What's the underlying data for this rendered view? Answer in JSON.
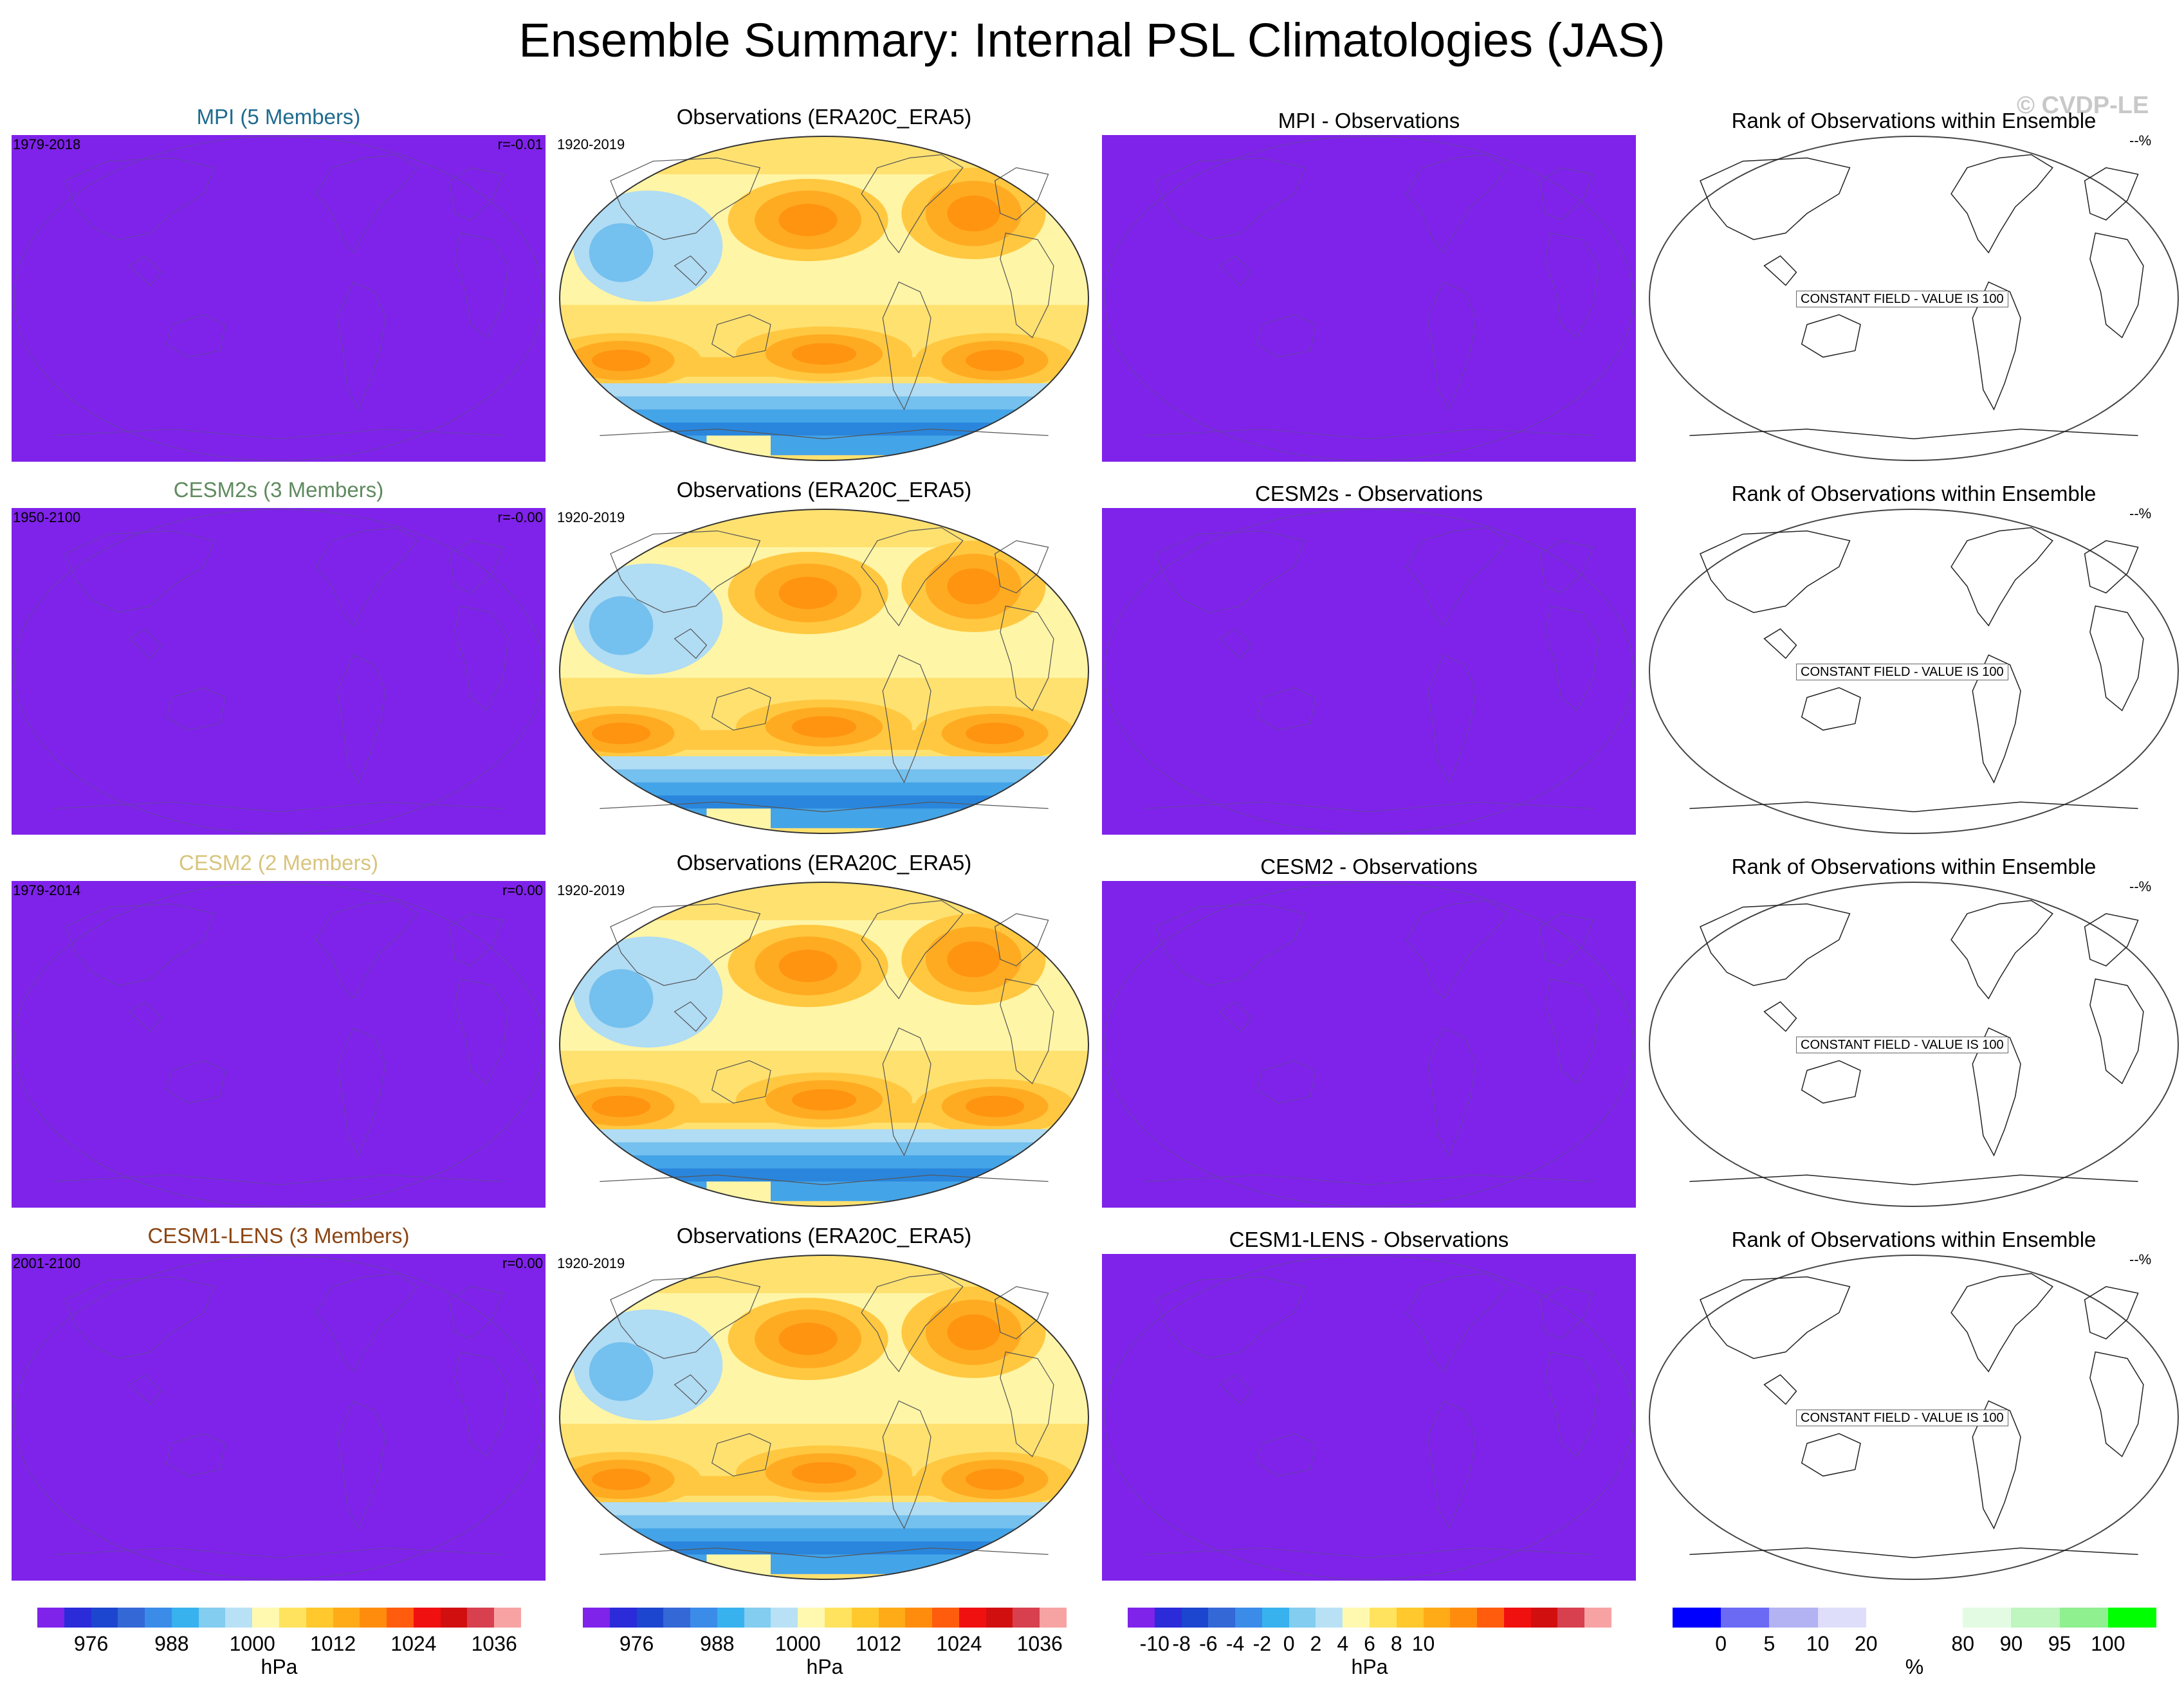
{
  "title": "Ensemble Summary: Internal PSL Climatologies (JAS)",
  "copyright": "© CVDP-LE",
  "rows": [
    {
      "ensemble": {
        "title": "MPI (5 Members)",
        "title_color": "#1f6b8e",
        "years": "1979-2018",
        "corr": "r=-0.01"
      },
      "obs": {
        "title": "Observations (ERA20C_ERA5)",
        "years": "1920-2019"
      },
      "diff": {
        "title": "MPI - Observations"
      },
      "rank": {
        "title": "Rank of Observations within Ensemble",
        "pct": "--%",
        "note": "CONSTANT FIELD - VALUE IS 100"
      }
    },
    {
      "ensemble": {
        "title": "CESM2s (3 Members)",
        "title_color": "#5f8a5f",
        "years": "1950-2100",
        "corr": "r=-0.00"
      },
      "obs": {
        "title": "Observations (ERA20C_ERA5)",
        "years": "1920-2019"
      },
      "diff": {
        "title": "CESM2s - Observations"
      },
      "rank": {
        "title": "Rank of Observations within Ensemble",
        "pct": "--%",
        "note": "CONSTANT FIELD - VALUE IS 100"
      }
    },
    {
      "ensemble": {
        "title": "CESM2 (2 Members)",
        "title_color": "#d8c47c",
        "years": "1979-2014",
        "corr": "r=0.00"
      },
      "obs": {
        "title": "Observations (ERA20C_ERA5)",
        "years": "1920-2019"
      },
      "diff": {
        "title": "CESM2 - Observations"
      },
      "rank": {
        "title": "Rank of Observations within Ensemble",
        "pct": "--%",
        "note": "CONSTANT FIELD - VALUE IS 100"
      }
    },
    {
      "ensemble": {
        "title": "CESM1-LENS (3 Members)",
        "title_color": "#8b4513",
        "years": "2001-2100",
        "corr": "r=0.00"
      },
      "obs": {
        "title": "Observations (ERA20C_ERA5)",
        "years": "1920-2019"
      },
      "diff": {
        "title": "CESM1-LENS - Observations"
      },
      "rank": {
        "title": "Rank of Observations within Ensemble",
        "pct": "--%",
        "note": "CONSTANT FIELD - VALUE IS 100"
      }
    }
  ],
  "fill_color": "#7f22ea",
  "obs_fill_colors": [
    "#fff5a6",
    "#ffe170",
    "#ffc840",
    "#ffab22",
    "#ff9410",
    "#f9a30c"
  ],
  "obs_cool_colors": [
    "#b0dcf4",
    "#74c0ee",
    "#44a4e8",
    "#2a86dc",
    "#4566d8"
  ],
  "colorbars": [
    {
      "unit": "hPa",
      "colors": [
        "#7f22ea",
        "#2b2bd9",
        "#1c46cf",
        "#3468d6",
        "#3a8ce8",
        "#37b2ef",
        "#82cdf0",
        "#b8e1f5",
        "#fff9b0",
        "#ffe35f",
        "#ffc82d",
        "#ffab18",
        "#ff8c0d",
        "#ff5c0d",
        "#f11010",
        "#d20f0f",
        "#d8404f",
        "#f7a3a3"
      ],
      "ticks": [
        {
          "label": "976",
          "pos": 2
        },
        {
          "label": "988",
          "pos": 5
        },
        {
          "label": "1000",
          "pos": 8
        },
        {
          "label": "1012",
          "pos": 11
        },
        {
          "label": "1024",
          "pos": 14
        },
        {
          "label": "1036",
          "pos": 17
        }
      ]
    },
    {
      "unit": "hPa",
      "colors": [
        "#7f22ea",
        "#2b2bd9",
        "#1c46cf",
        "#3468d6",
        "#3a8ce8",
        "#37b2ef",
        "#82cdf0",
        "#b8e1f5",
        "#fff9b0",
        "#ffe35f",
        "#ffc82d",
        "#ffab18",
        "#ff8c0d",
        "#ff5c0d",
        "#f11010",
        "#d20f0f",
        "#d8404f",
        "#f7a3a3"
      ],
      "ticks": [
        {
          "label": "976",
          "pos": 2
        },
        {
          "label": "988",
          "pos": 5
        },
        {
          "label": "1000",
          "pos": 8
        },
        {
          "label": "1012",
          "pos": 11
        },
        {
          "label": "1024",
          "pos": 14
        },
        {
          "label": "1036",
          "pos": 17
        }
      ]
    },
    {
      "unit": "hPa",
      "colors": [
        "#7f22ea",
        "#2b2bd9",
        "#1c46cf",
        "#3468d6",
        "#3a8ce8",
        "#37b2ef",
        "#82cdf0",
        "#b8e1f5",
        "#fff9b0",
        "#ffe35f",
        "#ffc82d",
        "#ffab18",
        "#ff8c0d",
        "#ff5c0d",
        "#f11010",
        "#d20f0f",
        "#d8404f",
        "#f7a3a3"
      ],
      "ticks": [
        {
          "label": "-10",
          "pos": 1
        },
        {
          "label": "-8",
          "pos": 2
        },
        {
          "label": "-6",
          "pos": 3
        },
        {
          "label": "-4",
          "pos": 4
        },
        {
          "label": "-2",
          "pos": 5
        },
        {
          "label": "0",
          "pos": 6
        },
        {
          "label": "2",
          "pos": 7
        },
        {
          "label": "4",
          "pos": 8
        },
        {
          "label": "6",
          "pos": 9
        },
        {
          "label": "8",
          "pos": 10
        },
        {
          "label": "10",
          "pos": 11
        }
      ]
    },
    {
      "unit": "%",
      "colors": [
        "#0000ff",
        "#6a6af5",
        "#b3b3f3",
        "#dedefb",
        "#ffffff",
        "#ffffff",
        "#e3fbe3",
        "#bff5bf",
        "#8ef08e",
        "#00ff00"
      ],
      "ticks": [
        {
          "label": "0",
          "pos": 1
        },
        {
          "label": "5",
          "pos": 2
        },
        {
          "label": "10",
          "pos": 3
        },
        {
          "label": "20",
          "pos": 4
        },
        {
          "label": "80",
          "pos": 6
        },
        {
          "label": "90",
          "pos": 7
        },
        {
          "label": "95",
          "pos": 8
        },
        {
          "label": "100",
          "pos": 9
        }
      ]
    }
  ]
}
